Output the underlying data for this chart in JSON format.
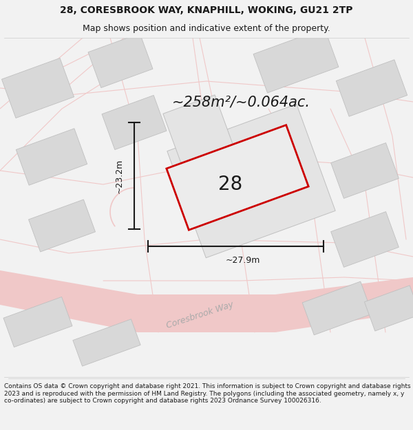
{
  "title_line1": "28, CORESBROOK WAY, KNAPHILL, WOKING, GU21 2TP",
  "title_line2": "Map shows position and indicative extent of the property.",
  "area_text": "~258m²/~0.064ac.",
  "number_label": "28",
  "width_label": "~27.9m",
  "height_label": "~23.2m",
  "street_label": "Coresbrook Way",
  "footer_text": "Contains OS data © Crown copyright and database right 2021. This information is subject to Crown copyright and database rights 2023 and is reproduced with the permission of HM Land Registry. The polygons (including the associated geometry, namely x, y co-ordinates) are subject to Crown copyright and database rights 2023 Ordnance Survey 100026316.",
  "bg_color": "#f2f2f2",
  "map_bg": "#ffffff",
  "road_color": "#f0c8c8",
  "building_color": "#d8d8d8",
  "building_outline": "#c0c0c0",
  "parcel_color": "#e0e0e0",
  "parcel_outline": "#b8b8b8",
  "plot_fill": "#e8e8e8",
  "plot_outline": "#cc0000",
  "dim_line_color": "#1a1a1a",
  "text_dark": "#1a1a1a",
  "text_gray": "#999999",
  "street_text_color": "#aaaaaa",
  "title_fontsize": 10,
  "subtitle_fontsize": 9,
  "area_fontsize": 15,
  "number_fontsize": 20,
  "dim_fontsize": 9,
  "street_fontsize": 9,
  "footer_fontsize": 6.5
}
